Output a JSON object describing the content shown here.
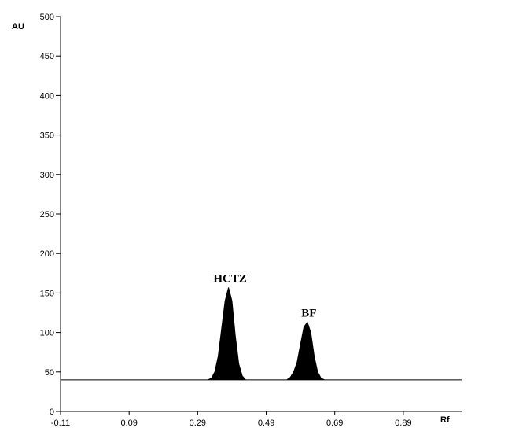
{
  "chart_data": {
    "type": "area",
    "xlabel": "Rf",
    "ylabel": "AU",
    "x": [
      -0.11,
      0.32,
      0.33,
      0.34,
      0.35,
      0.36,
      0.37,
      0.38,
      0.39,
      0.4,
      0.41,
      0.42,
      0.43,
      0.55,
      0.56,
      0.57,
      0.58,
      0.59,
      0.6,
      0.61,
      0.62,
      0.63,
      0.64,
      0.65,
      0.66,
      1.06
    ],
    "values": [
      40,
      40,
      42,
      50,
      70,
      105,
      140,
      157,
      140,
      95,
      60,
      45,
      40,
      40,
      43,
      50,
      62,
      85,
      107,
      113,
      100,
      70,
      50,
      42,
      40,
      40
    ],
    "color": "#000000",
    "xlim": [
      -0.11,
      1.06
    ],
    "xticks": [
      -0.11,
      0.09,
      0.29,
      0.49,
      0.69,
      0.89
    ],
    "ylim": [
      0,
      500
    ],
    "yticks": [
      0,
      50,
      100,
      150,
      200,
      250,
      300,
      350,
      400,
      450,
      500
    ],
    "annotations": [
      {
        "text": "HCTZ",
        "x": 0.38
      },
      {
        "text": "BF",
        "x": 0.61
      }
    ]
  }
}
